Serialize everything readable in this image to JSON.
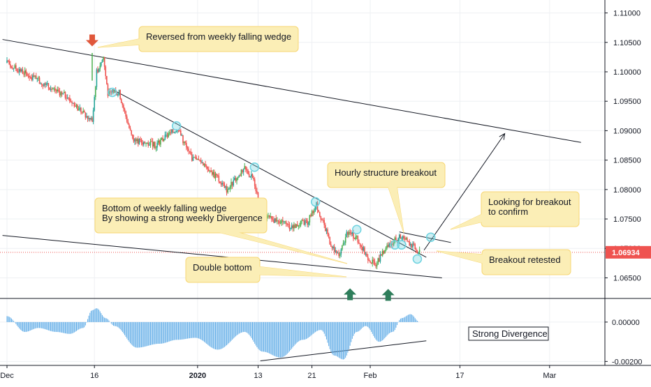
{
  "chart_data": {
    "type": "candlestick",
    "symbol": "",
    "price_axis": {
      "ylim": [
        1.0615,
        1.1122
      ],
      "ticks": [
        "1.11000",
        "1.10500",
        "1.10000",
        "1.09500",
        "1.09000",
        "1.08500",
        "1.08000",
        "1.07500",
        "1.07000",
        "1.06500"
      ],
      "tick_values": [
        1.11,
        1.105,
        1.1,
        1.095,
        1.09,
        1.085,
        1.08,
        1.075,
        1.07,
        1.065
      ]
    },
    "indicator_axis": {
      "ylim": [
        -0.0022,
        0.0012
      ],
      "ticks": [
        "0.00000",
        "-0.00200"
      ],
      "tick_values": [
        0.0,
        -0.002
      ]
    },
    "time_axis": {
      "labels": [
        "Dec",
        "16",
        "2020",
        "13",
        "21",
        "Feb",
        "17",
        "Mar"
      ]
    },
    "current_price": {
      "label": "1.06934",
      "value": 1.06934,
      "color": "#ef5350"
    },
    "key_points": [
      {
        "day": 0,
        "price": 1.1015
      },
      {
        "day": 7,
        "price": 1.0985
      },
      {
        "day": 13,
        "price": 1.096
      },
      {
        "day": 19,
        "price": 1.0915
      },
      {
        "day": 20,
        "price": 1.1
      },
      {
        "day": 21.5,
        "price": 1.1025
      },
      {
        "day": 22.5,
        "price": 1.0962
      },
      {
        "day": 25,
        "price": 1.0965
      },
      {
        "day": 28,
        "price": 1.0885
      },
      {
        "day": 33,
        "price": 1.0875
      },
      {
        "day": 38,
        "price": 1.0905
      },
      {
        "day": 41,
        "price": 1.0855
      },
      {
        "day": 44,
        "price": 1.0845
      },
      {
        "day": 49,
        "price": 1.08
      },
      {
        "day": 53,
        "price": 1.0835
      },
      {
        "day": 55,
        "price": 1.0818
      },
      {
        "day": 57,
        "price": 1.0755
      },
      {
        "day": 63,
        "price": 1.0738
      },
      {
        "day": 67,
        "price": 1.0745
      },
      {
        "day": 69,
        "price": 1.0775
      },
      {
        "day": 72,
        "price": 1.0712
      },
      {
        "day": 74,
        "price": 1.0685
      },
      {
        "day": 76,
        "price": 1.0728
      },
      {
        "day": 78,
        "price": 1.0718
      },
      {
        "day": 80,
        "price": 1.069
      },
      {
        "day": 82,
        "price": 1.0672
      },
      {
        "day": 85,
        "price": 1.0705
      },
      {
        "day": 88,
        "price": 1.0722
      },
      {
        "day": 90,
        "price": 1.0708
      },
      {
        "day": 92,
        "price": 1.0693
      }
    ],
    "histogram_points": [
      {
        "day": 0,
        "value": 0.0003
      },
      {
        "day": 4,
        "value": -0.0005
      },
      {
        "day": 7,
        "value": -0.0003
      },
      {
        "day": 11,
        "value": -0.0005
      },
      {
        "day": 14,
        "value": -0.0006
      },
      {
        "day": 17,
        "value": -0.0003
      },
      {
        "day": 19,
        "value": 0.0006
      },
      {
        "day": 20,
        "value": 0.0007
      },
      {
        "day": 22,
        "value": 0.0002
      },
      {
        "day": 24,
        "value": -0.0002
      },
      {
        "day": 29,
        "value": -0.0013
      },
      {
        "day": 34,
        "value": -0.0011
      },
      {
        "day": 38,
        "value": -0.0009
      },
      {
        "day": 42,
        "value": -0.0008
      },
      {
        "day": 47,
        "value": -0.0014
      },
      {
        "day": 53,
        "value": -0.0005
      },
      {
        "day": 57,
        "value": -0.0015
      },
      {
        "day": 61,
        "value": -0.0018
      },
      {
        "day": 66,
        "value": -0.0009
      },
      {
        "day": 70,
        "value": -0.0004
      },
      {
        "day": 73,
        "value": -0.0017
      },
      {
        "day": 75,
        "value": -0.0019
      },
      {
        "day": 78,
        "value": -0.0005
      },
      {
        "day": 80,
        "value": -0.0002
      },
      {
        "day": 83,
        "value": -0.001
      },
      {
        "day": 86,
        "value": -0.0005
      },
      {
        "day": 88,
        "value": 0.0002
      },
      {
        "day": 90,
        "value": 0.0004
      },
      {
        "day": 92,
        "value": 0.0
      }
    ],
    "trendlines": [
      {
        "name": "weekly-upper-line",
        "points": [
          [
            -1,
            1.1055
          ],
          [
            128,
            1.088
          ]
        ]
      },
      {
        "name": "weekly-lower-line",
        "points": [
          [
            -1,
            1.0722
          ],
          [
            97,
            1.065
          ]
        ]
      },
      {
        "name": "falling-resistance-line",
        "points": [
          [
            23.5,
            1.097
          ],
          [
            93.5,
            1.0685
          ]
        ]
      },
      {
        "name": "hourly-upper-line",
        "points": [
          [
            87.5,
            1.0728
          ],
          [
            99,
            1.071
          ]
        ]
      },
      {
        "name": "projection-arrow",
        "points": [
          [
            93,
            1.0697
          ],
          [
            111,
            1.0895
          ]
        ]
      },
      {
        "name": "divergence-line",
        "points": [
          [
            56.5,
            -0.00197
          ],
          [
            93.5,
            -0.00095
          ]
        ]
      }
    ],
    "touch_points": [
      [
        23.5,
        1.0965
      ],
      [
        37.8,
        1.0908
      ],
      [
        55.2,
        1.0838
      ],
      [
        68.8,
        1.0779
      ],
      [
        78,
        1.0732
      ],
      [
        86.5,
        1.0706
      ],
      [
        88,
        1.0706
      ],
      [
        91.5,
        1.0682
      ],
      [
        94.5,
        1.0719
      ]
    ],
    "double_bottom_markers": [
      {
        "day": 76.5,
        "price": 1.0663
      },
      {
        "day": 85,
        "price": 1.0662
      }
    ],
    "reversal_marker": {
      "day": 19,
      "price": 1.1035
    },
    "annotations": {
      "reversed": "Reversed from weekly falling wedge",
      "bottom_line1": "Bottom of weekly falling wedge",
      "bottom_line2": "By showing a strong weekly Divergence",
      "double_bottom": "Double bottom",
      "hourly_breakout": "Hourly structure breakout",
      "looking_line1": "Looking for breakout",
      "looking_line2": "to confirm",
      "retested": "Breakout retested",
      "strong_divergence": "Strong Divergence"
    },
    "colors": {
      "up": "#26a69a",
      "up_bright": "#4caf50",
      "down": "#ef5350",
      "callout_bg": "#fbeeb6",
      "callout_border": "#f7d774",
      "histogram": "#5aa9e6",
      "touch_circle": "#6fd3e0",
      "arrow_up": "#2e7d5b",
      "arrow_down": "#e0573b"
    }
  }
}
